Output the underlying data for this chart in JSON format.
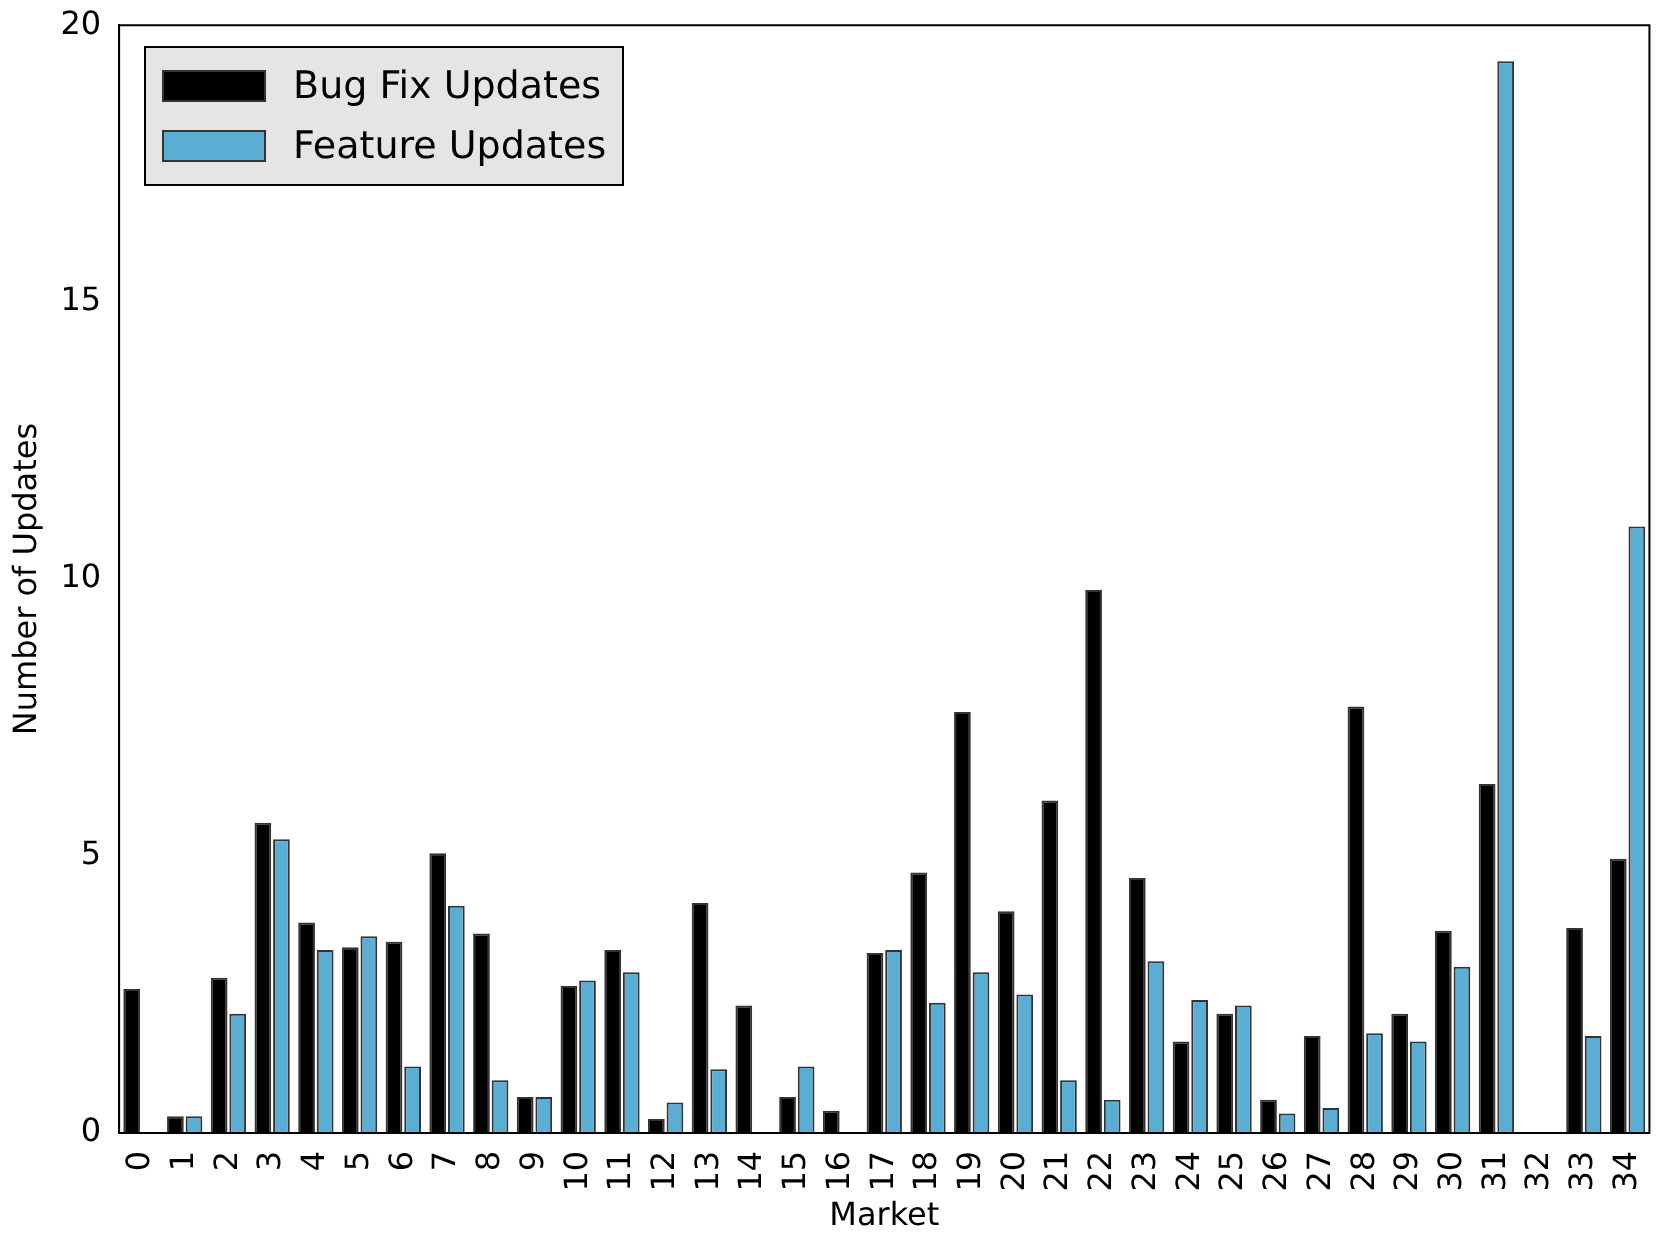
{
  "chart_data": {
    "type": "bar",
    "xlabel": "Market",
    "ylabel": "Number of Updates",
    "categories": [
      "0",
      "1",
      "2",
      "3",
      "4",
      "5",
      "6",
      "7",
      "8",
      "9",
      "10",
      "11",
      "12",
      "13",
      "14",
      "15",
      "16",
      "17",
      "18",
      "19",
      "20",
      "21",
      "22",
      "23",
      "24",
      "25",
      "26",
      "27",
      "28",
      "29",
      "30",
      "31",
      "32",
      "33",
      "34"
    ],
    "series": [
      {
        "name": "Bug Fix Updates",
        "color": "#000000",
        "values": [
          2.6,
          0.3,
          2.8,
          5.6,
          3.8,
          3.35,
          3.45,
          5.05,
          3.6,
          0.65,
          2.65,
          3.3,
          0.25,
          4.15,
          2.3,
          0.65,
          0.4,
          3.25,
          4.7,
          7.6,
          4.0,
          6.0,
          9.8,
          4.6,
          1.65,
          2.15,
          0.6,
          1.75,
          7.7,
          2.15,
          3.65,
          6.3,
          0,
          3.7,
          4.95
        ]
      },
      {
        "name": "Feature Updates",
        "color": "#5aaed3",
        "values": [
          0,
          0.3,
          2.15,
          5.3,
          3.3,
          3.55,
          1.2,
          4.1,
          0.95,
          0.65,
          2.75,
          2.9,
          0.55,
          1.15,
          0,
          1.2,
          0,
          3.3,
          2.35,
          2.9,
          2.5,
          0.95,
          0.6,
          3.1,
          2.4,
          2.3,
          0.35,
          0.45,
          1.8,
          1.65,
          3.0,
          19.35,
          0,
          1.75,
          10.95
        ]
      }
    ],
    "ylim": [
      0,
      20
    ],
    "yticks": [
      0,
      5,
      10,
      15,
      20
    ],
    "grid": false,
    "legend": "top left"
  }
}
